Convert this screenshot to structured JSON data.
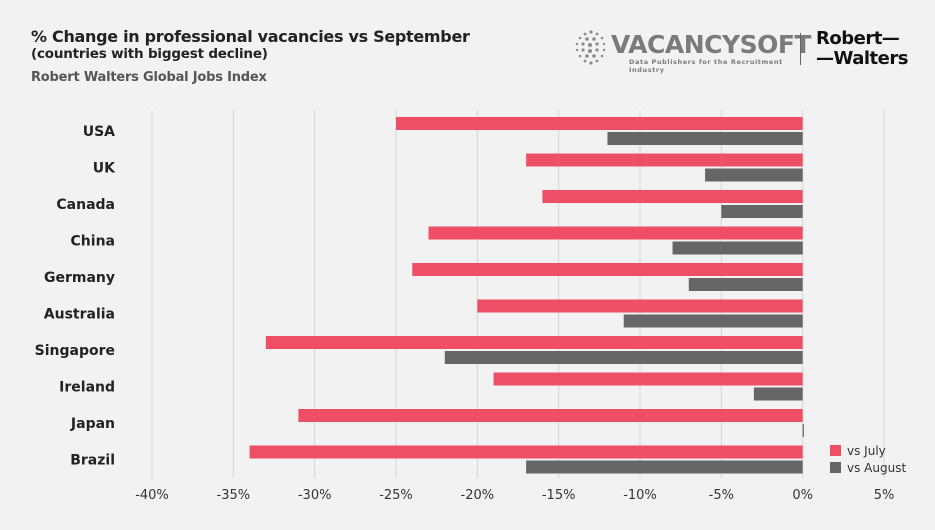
{
  "header": {
    "title": "% Change in professional vacancies vs September",
    "subtitle": "(countries with biggest decline)",
    "source": "Robert Walters Global Jobs Index"
  },
  "logos": {
    "vacancysoft": "VACANCYSOFT",
    "vacancysoft_tagline": "Data Publishers for the Recruitment Industry",
    "robert_walters_line1": "Robert—",
    "robert_walters_line2": "—Walters"
  },
  "colors": {
    "vs_july": "#ee4f66",
    "vs_august": "#666666",
    "grid": "#d4d4d4",
    "background": "#f2f2f2"
  },
  "chart_data": {
    "type": "bar",
    "orientation": "horizontal",
    "categories": [
      "USA",
      "UK",
      "Canada",
      "China",
      "Germany",
      "Australia",
      "Singapore",
      "Ireland",
      "Japan",
      "Brazil"
    ],
    "series": [
      {
        "name": "vs July",
        "values": [
          -25,
          -17,
          -16,
          -23,
          -24,
          -20,
          -33,
          -19,
          -31,
          -34
        ]
      },
      {
        "name": "vs August",
        "values": [
          -12,
          -6,
          -5,
          -8,
          -7,
          -11,
          -22,
          -3,
          0,
          -17
        ]
      }
    ],
    "xlim": [
      -40,
      5
    ],
    "xticks": [
      -40,
      -35,
      -30,
      -25,
      -20,
      -15,
      -10,
      -5,
      0,
      5
    ],
    "xtick_labels": [
      "-40%",
      "-35%",
      "-30%",
      "-25%",
      "-20%",
      "-15%",
      "-10%",
      "-5%",
      "0%",
      "5%"
    ],
    "grid": true,
    "legend_position": "bottom-right"
  }
}
